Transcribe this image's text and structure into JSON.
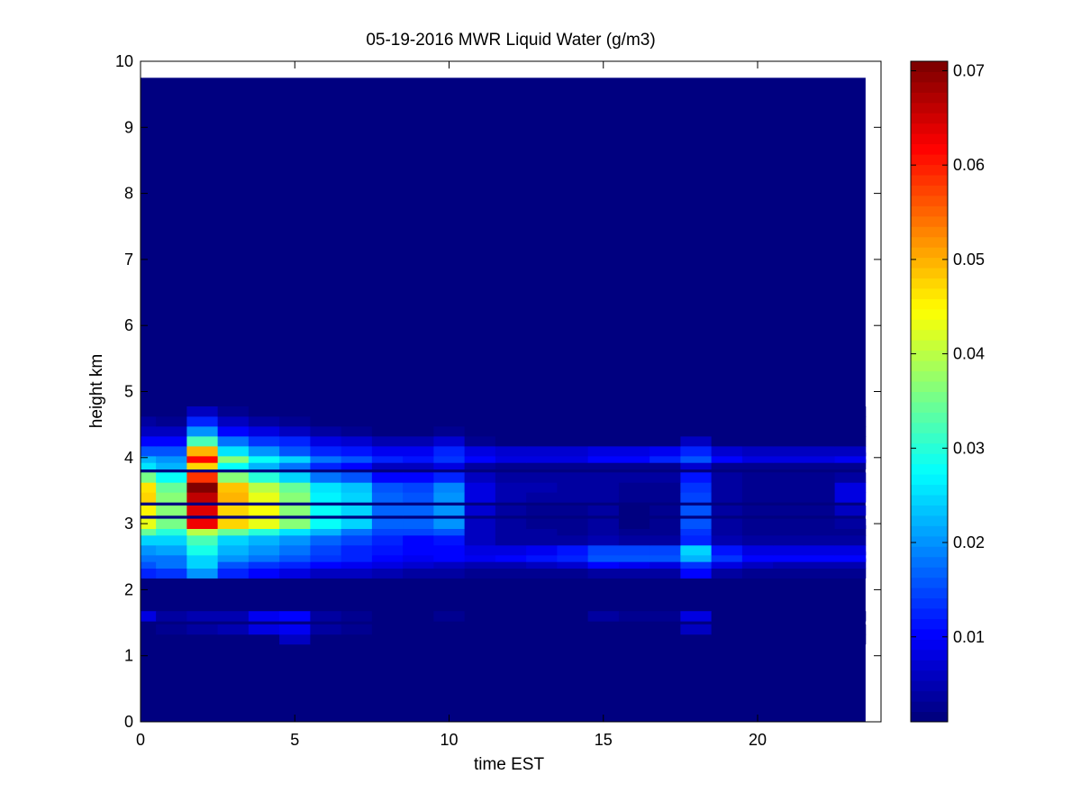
{
  "chart_data": {
    "type": "heatmap",
    "title": "05-19-2016 MWR Liquid Water (g/m3)",
    "xlabel": "time EST",
    "ylabel": "height km",
    "xlim": [
      0,
      24
    ],
    "ylim": [
      0,
      10
    ],
    "x_ticks": [
      0,
      5,
      10,
      15,
      20
    ],
    "x_tick_labels": [
      "0",
      "5",
      "10",
      "15",
      "20"
    ],
    "y_ticks": [
      0,
      1,
      2,
      3,
      4,
      5,
      6,
      7,
      8,
      9,
      10
    ],
    "y_tick_labels": [
      "0",
      "1",
      "2",
      "3",
      "4",
      "5",
      "6",
      "7",
      "8",
      "9",
      "10"
    ],
    "colormap": "jet",
    "colorbar": {
      "range": [
        0.001,
        0.071
      ],
      "ticks": [
        0.01,
        0.02,
        0.03,
        0.04,
        0.05,
        0.06,
        0.07
      ],
      "tick_labels": [
        "0.01",
        "0.02",
        "0.03",
        "0.04",
        "0.05",
        "0.06",
        "0.07"
      ]
    },
    "data_extent": {
      "x": [
        0,
        23.5
      ],
      "y": [
        0,
        9.75
      ]
    },
    "background_value": 0.001,
    "time_edges": [
      0,
      0.5,
      1.5,
      2.5,
      3.5,
      4.5,
      5.5,
      6.5,
      7.5,
      8.5,
      9.5,
      10.5,
      11.5,
      12.5,
      13.5,
      14.5,
      15.5,
      16.5,
      17.5,
      18.5,
      19.5,
      20.5,
      21.5,
      22.5,
      23.5
    ],
    "height_levels_km": [
      1.25,
      1.4,
      1.6,
      2.25,
      2.4,
      2.5,
      2.6,
      2.75,
      2.9,
      3.0,
      3.2,
      3.4,
      3.55,
      3.7,
      3.9,
      4.0,
      4.1,
      4.25,
      4.4,
      4.55,
      4.7
    ],
    "level_half_thickness_km": 0.075,
    "values": [
      [
        0.001,
        0.001,
        0.001,
        0.001,
        0.001,
        0.006,
        0.001,
        0.001,
        0.001,
        0.001,
        0.001,
        0.001,
        0.001,
        0.001,
        0.001,
        0.001,
        0.001,
        0.001,
        0.001,
        0.001,
        0.001,
        0.001,
        0.001,
        0.001
      ],
      [
        0.002,
        0.003,
        0.004,
        0.005,
        0.008,
        0.009,
        0.004,
        0.003,
        0.002,
        0.002,
        0.002,
        0.002,
        0.002,
        0.002,
        0.002,
        0.002,
        0.002,
        0.002,
        0.006,
        0.002,
        0.002,
        0.002,
        0.002,
        0.002
      ],
      [
        0.008,
        0.004,
        0.005,
        0.005,
        0.009,
        0.01,
        0.004,
        0.003,
        0.002,
        0.002,
        0.003,
        0.002,
        0.002,
        0.002,
        0.002,
        0.004,
        0.003,
        0.003,
        0.008,
        0.002,
        0.002,
        0.002,
        0.002,
        0.002
      ],
      [
        0.012,
        0.014,
        0.02,
        0.012,
        0.01,
        0.008,
        0.006,
        0.006,
        0.005,
        0.004,
        0.004,
        0.003,
        0.003,
        0.003,
        0.003,
        0.004,
        0.004,
        0.004,
        0.01,
        0.004,
        0.003,
        0.003,
        0.003,
        0.003
      ],
      [
        0.016,
        0.018,
        0.025,
        0.016,
        0.014,
        0.012,
        0.01,
        0.009,
        0.008,
        0.007,
        0.006,
        0.005,
        0.005,
        0.006,
        0.007,
        0.01,
        0.009,
        0.008,
        0.014,
        0.008,
        0.006,
        0.005,
        0.005,
        0.005
      ],
      [
        0.018,
        0.018,
        0.025,
        0.02,
        0.018,
        0.016,
        0.014,
        0.012,
        0.01,
        0.009,
        0.01,
        0.009,
        0.01,
        0.011,
        0.012,
        0.016,
        0.016,
        0.016,
        0.022,
        0.014,
        0.01,
        0.01,
        0.01,
        0.01
      ],
      [
        0.02,
        0.021,
        0.029,
        0.022,
        0.02,
        0.018,
        0.015,
        0.013,
        0.011,
        0.01,
        0.01,
        0.008,
        0.008,
        0.009,
        0.011,
        0.015,
        0.015,
        0.015,
        0.025,
        0.011,
        0.008,
        0.008,
        0.008,
        0.008
      ],
      [
        0.024,
        0.025,
        0.032,
        0.025,
        0.022,
        0.02,
        0.017,
        0.015,
        0.012,
        0.01,
        0.011,
        0.006,
        0.004,
        0.004,
        0.004,
        0.005,
        0.004,
        0.004,
        0.012,
        0.005,
        0.004,
        0.004,
        0.004,
        0.004
      ],
      [
        0.034,
        0.03,
        0.04,
        0.034,
        0.03,
        0.026,
        0.022,
        0.018,
        0.015,
        0.015,
        0.016,
        0.006,
        0.004,
        0.004,
        0.003,
        0.004,
        0.003,
        0.003,
        0.014,
        0.004,
        0.003,
        0.003,
        0.003,
        0.003
      ],
      [
        0.043,
        0.035,
        0.063,
        0.047,
        0.043,
        0.037,
        0.028,
        0.025,
        0.017,
        0.017,
        0.02,
        0.006,
        0.004,
        0.003,
        0.003,
        0.004,
        0.002,
        0.003,
        0.016,
        0.004,
        0.003,
        0.003,
        0.003,
        0.004
      ],
      [
        0.045,
        0.036,
        0.064,
        0.048,
        0.044,
        0.037,
        0.028,
        0.025,
        0.017,
        0.017,
        0.02,
        0.007,
        0.004,
        0.003,
        0.003,
        0.004,
        0.002,
        0.003,
        0.016,
        0.004,
        0.003,
        0.003,
        0.003,
        0.006
      ],
      [
        0.048,
        0.036,
        0.066,
        0.05,
        0.043,
        0.036,
        0.027,
        0.025,
        0.017,
        0.016,
        0.02,
        0.008,
        0.005,
        0.004,
        0.004,
        0.004,
        0.003,
        0.003,
        0.015,
        0.004,
        0.003,
        0.003,
        0.003,
        0.008
      ],
      [
        0.046,
        0.034,
        0.071,
        0.049,
        0.04,
        0.034,
        0.026,
        0.023,
        0.016,
        0.015,
        0.019,
        0.008,
        0.005,
        0.005,
        0.004,
        0.004,
        0.003,
        0.003,
        0.014,
        0.004,
        0.003,
        0.003,
        0.003,
        0.008
      ],
      [
        0.035,
        0.028,
        0.058,
        0.036,
        0.03,
        0.025,
        0.018,
        0.016,
        0.01,
        0.01,
        0.012,
        0.006,
        0.004,
        0.004,
        0.004,
        0.004,
        0.004,
        0.004,
        0.011,
        0.004,
        0.003,
        0.003,
        0.003,
        0.004
      ],
      [
        0.026,
        0.022,
        0.048,
        0.028,
        0.022,
        0.018,
        0.012,
        0.01,
        0.006,
        0.006,
        0.008,
        0.004,
        0.003,
        0.003,
        0.003,
        0.003,
        0.003,
        0.003,
        0.007,
        0.003,
        0.003,
        0.003,
        0.003,
        0.003
      ],
      [
        0.022,
        0.02,
        0.062,
        0.036,
        0.028,
        0.024,
        0.018,
        0.016,
        0.012,
        0.011,
        0.014,
        0.01,
        0.008,
        0.008,
        0.008,
        0.01,
        0.01,
        0.012,
        0.016,
        0.01,
        0.008,
        0.008,
        0.008,
        0.009
      ],
      [
        0.016,
        0.016,
        0.05,
        0.026,
        0.02,
        0.016,
        0.012,
        0.011,
        0.009,
        0.009,
        0.012,
        0.008,
        0.007,
        0.007,
        0.007,
        0.008,
        0.008,
        0.009,
        0.012,
        0.007,
        0.006,
        0.006,
        0.006,
        0.006
      ],
      [
        0.01,
        0.01,
        0.032,
        0.018,
        0.014,
        0.012,
        0.008,
        0.007,
        0.005,
        0.005,
        0.007,
        0.003,
        0.002,
        0.002,
        0.002,
        0.002,
        0.002,
        0.002,
        0.006,
        0.002,
        0.002,
        0.002,
        0.002,
        0.002
      ],
      [
        0.006,
        0.006,
        0.02,
        0.01,
        0.008,
        0.006,
        0.004,
        0.003,
        0.002,
        0.002,
        0.003,
        0.001,
        0.001,
        0.001,
        0.001,
        0.001,
        0.001,
        0.001,
        0.002,
        0.001,
        0.001,
        0.001,
        0.001,
        0.001
      ],
      [
        0.004,
        0.003,
        0.012,
        0.006,
        0.004,
        0.003,
        0.002,
        0.001,
        0.001,
        0.001,
        0.001,
        0.001,
        0.001,
        0.001,
        0.001,
        0.001,
        0.001,
        0.001,
        0.001,
        0.001,
        0.001,
        0.001,
        0.001,
        0.001
      ],
      [
        0.001,
        0.001,
        0.006,
        0.003,
        0.002,
        0.001,
        0.001,
        0.001,
        0.001,
        0.001,
        0.001,
        0.001,
        0.001,
        0.001,
        0.001,
        0.001,
        0.001,
        0.001,
        0.001,
        0.001,
        0.001,
        0.001,
        0.001,
        0.001
      ]
    ]
  }
}
